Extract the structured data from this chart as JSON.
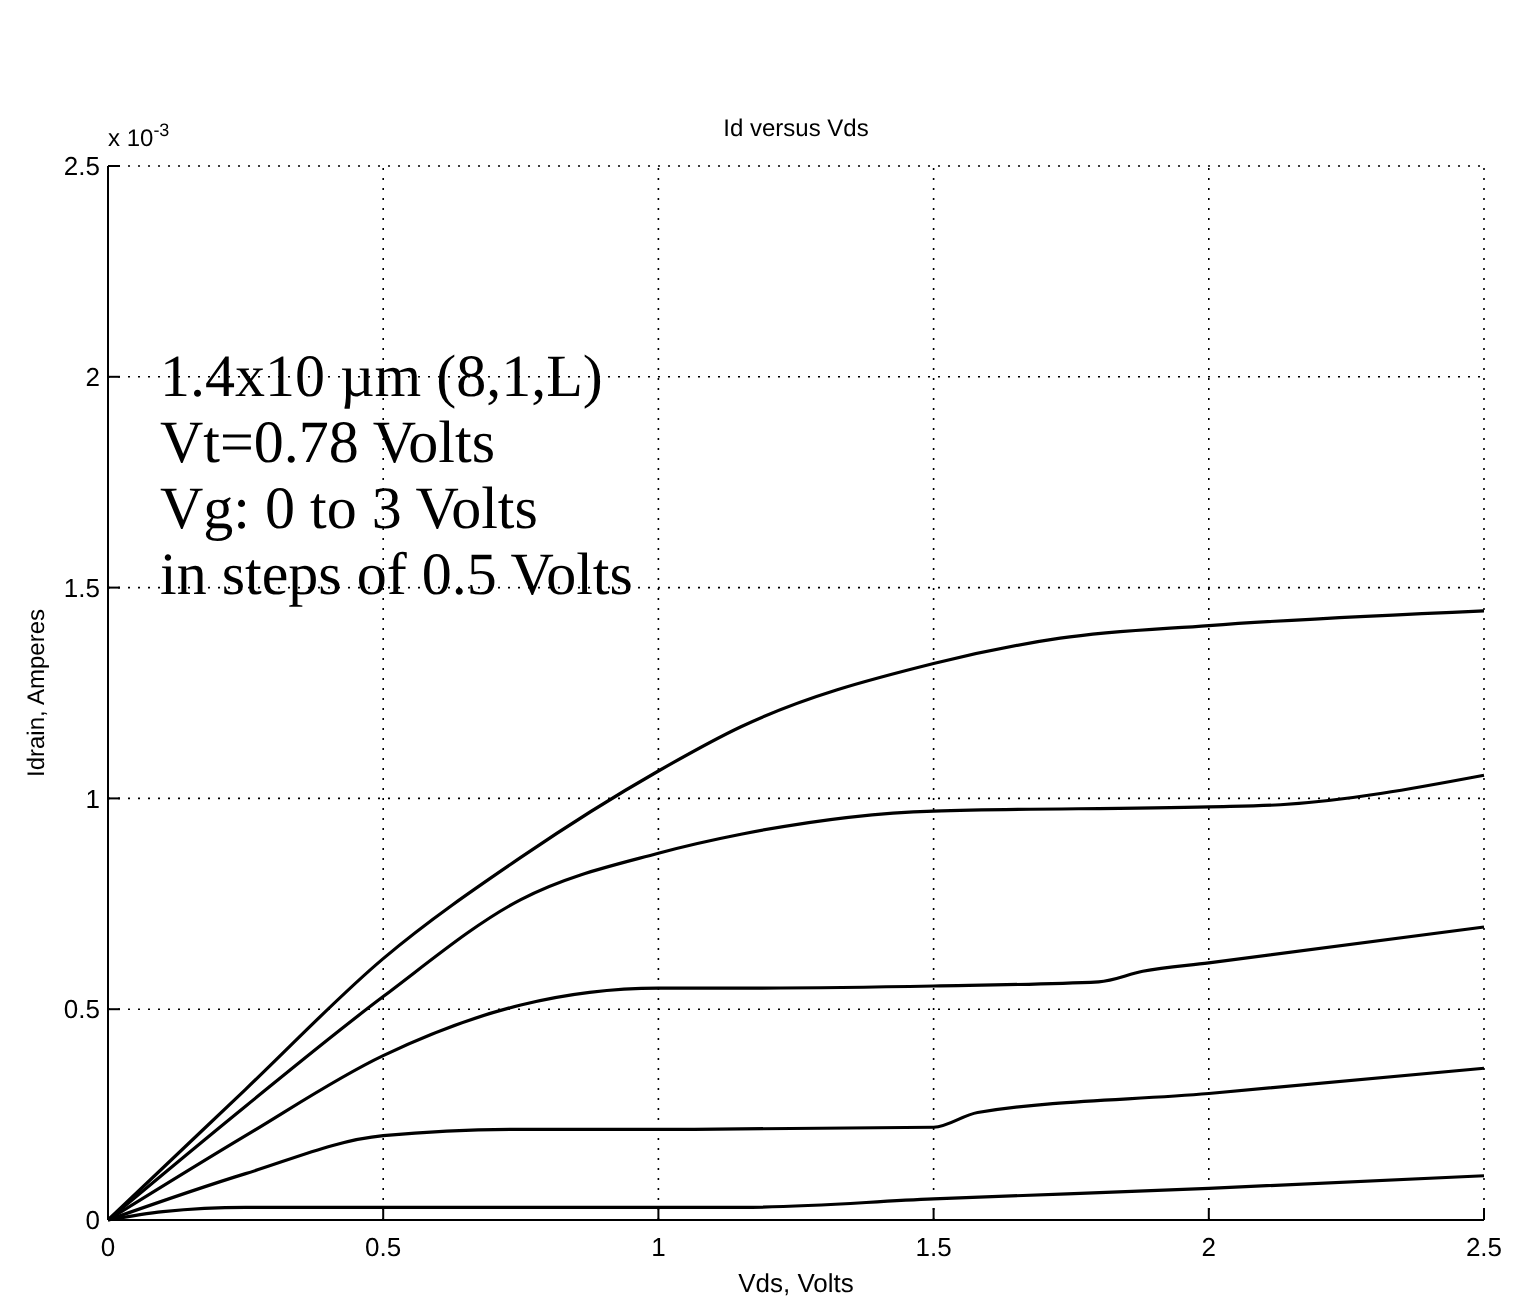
{
  "chart_data": {
    "type": "line",
    "title": "Id versus Vds",
    "xlabel": "Vds, Volts",
    "ylabel": "Idrain, Amperes",
    "annotations": [
      "x 10$^{-3}$",
      "1.4x10 µm (8,1,L)",
      "Vt=0.78 Volts",
      "Vg: 0 to 3 Volts",
      "in steps of 0.5 Volts"
    ],
    "series": [
      {
        "color": "#000000",
        "x": [
          0,
          0.25,
          0.5,
          0.75,
          1,
          1.15,
          1.5,
          1.73,
          2,
          2.5
        ],
        "values": [
          0,
          0.31,
          0.62,
          0.86,
          1.065,
          1.17,
          1.32,
          1.38,
          1.41,
          1.445
        ]
      },
      {
        "color": "#000000",
        "x": [
          0,
          0.25,
          0.5,
          0.75,
          1,
          1.15,
          1.5,
          2,
          2.13,
          2.5
        ],
        "values": [
          0,
          0.27,
          0.53,
          0.76,
          0.87,
          0.915,
          0.97,
          0.98,
          0.985,
          1.055
        ]
      },
      {
        "color": "#000000",
        "x": [
          0,
          0.25,
          0.5,
          0.75,
          1,
          1.15,
          1.5,
          1.8,
          1.88,
          2,
          2.5
        ],
        "values": [
          0,
          0.2,
          0.39,
          0.51,
          0.55,
          0.55,
          0.555,
          0.565,
          0.59,
          0.61,
          0.695
        ]
      },
      {
        "color": "#000000",
        "x": [
          0,
          0.25,
          0.5,
          0.75,
          1,
          1.5,
          1.58,
          2,
          2.5
        ],
        "values": [
          0,
          0.11,
          0.2,
          0.215,
          0.215,
          0.22,
          0.255,
          0.3,
          0.36
        ]
      },
      {
        "color": "#000000",
        "x": [
          0,
          0.1,
          0.25,
          1,
          1.15,
          1.5,
          2,
          2.5
        ],
        "values": [
          0,
          0.02,
          0.03,
          0.03,
          0.03,
          0.05,
          0.075,
          0.105
        ]
      }
    ],
    "xlim": [
      0,
      2.5
    ],
    "xticks": [
      0,
      0.5,
      1,
      1.5,
      2,
      2.5
    ],
    "ylim": [
      0,
      2.5
    ],
    "yticks": [
      0,
      0.5,
      1,
      1.5,
      2,
      2.5
    ],
    "grid": true,
    "line_style": "solid",
    "marker": "none"
  }
}
